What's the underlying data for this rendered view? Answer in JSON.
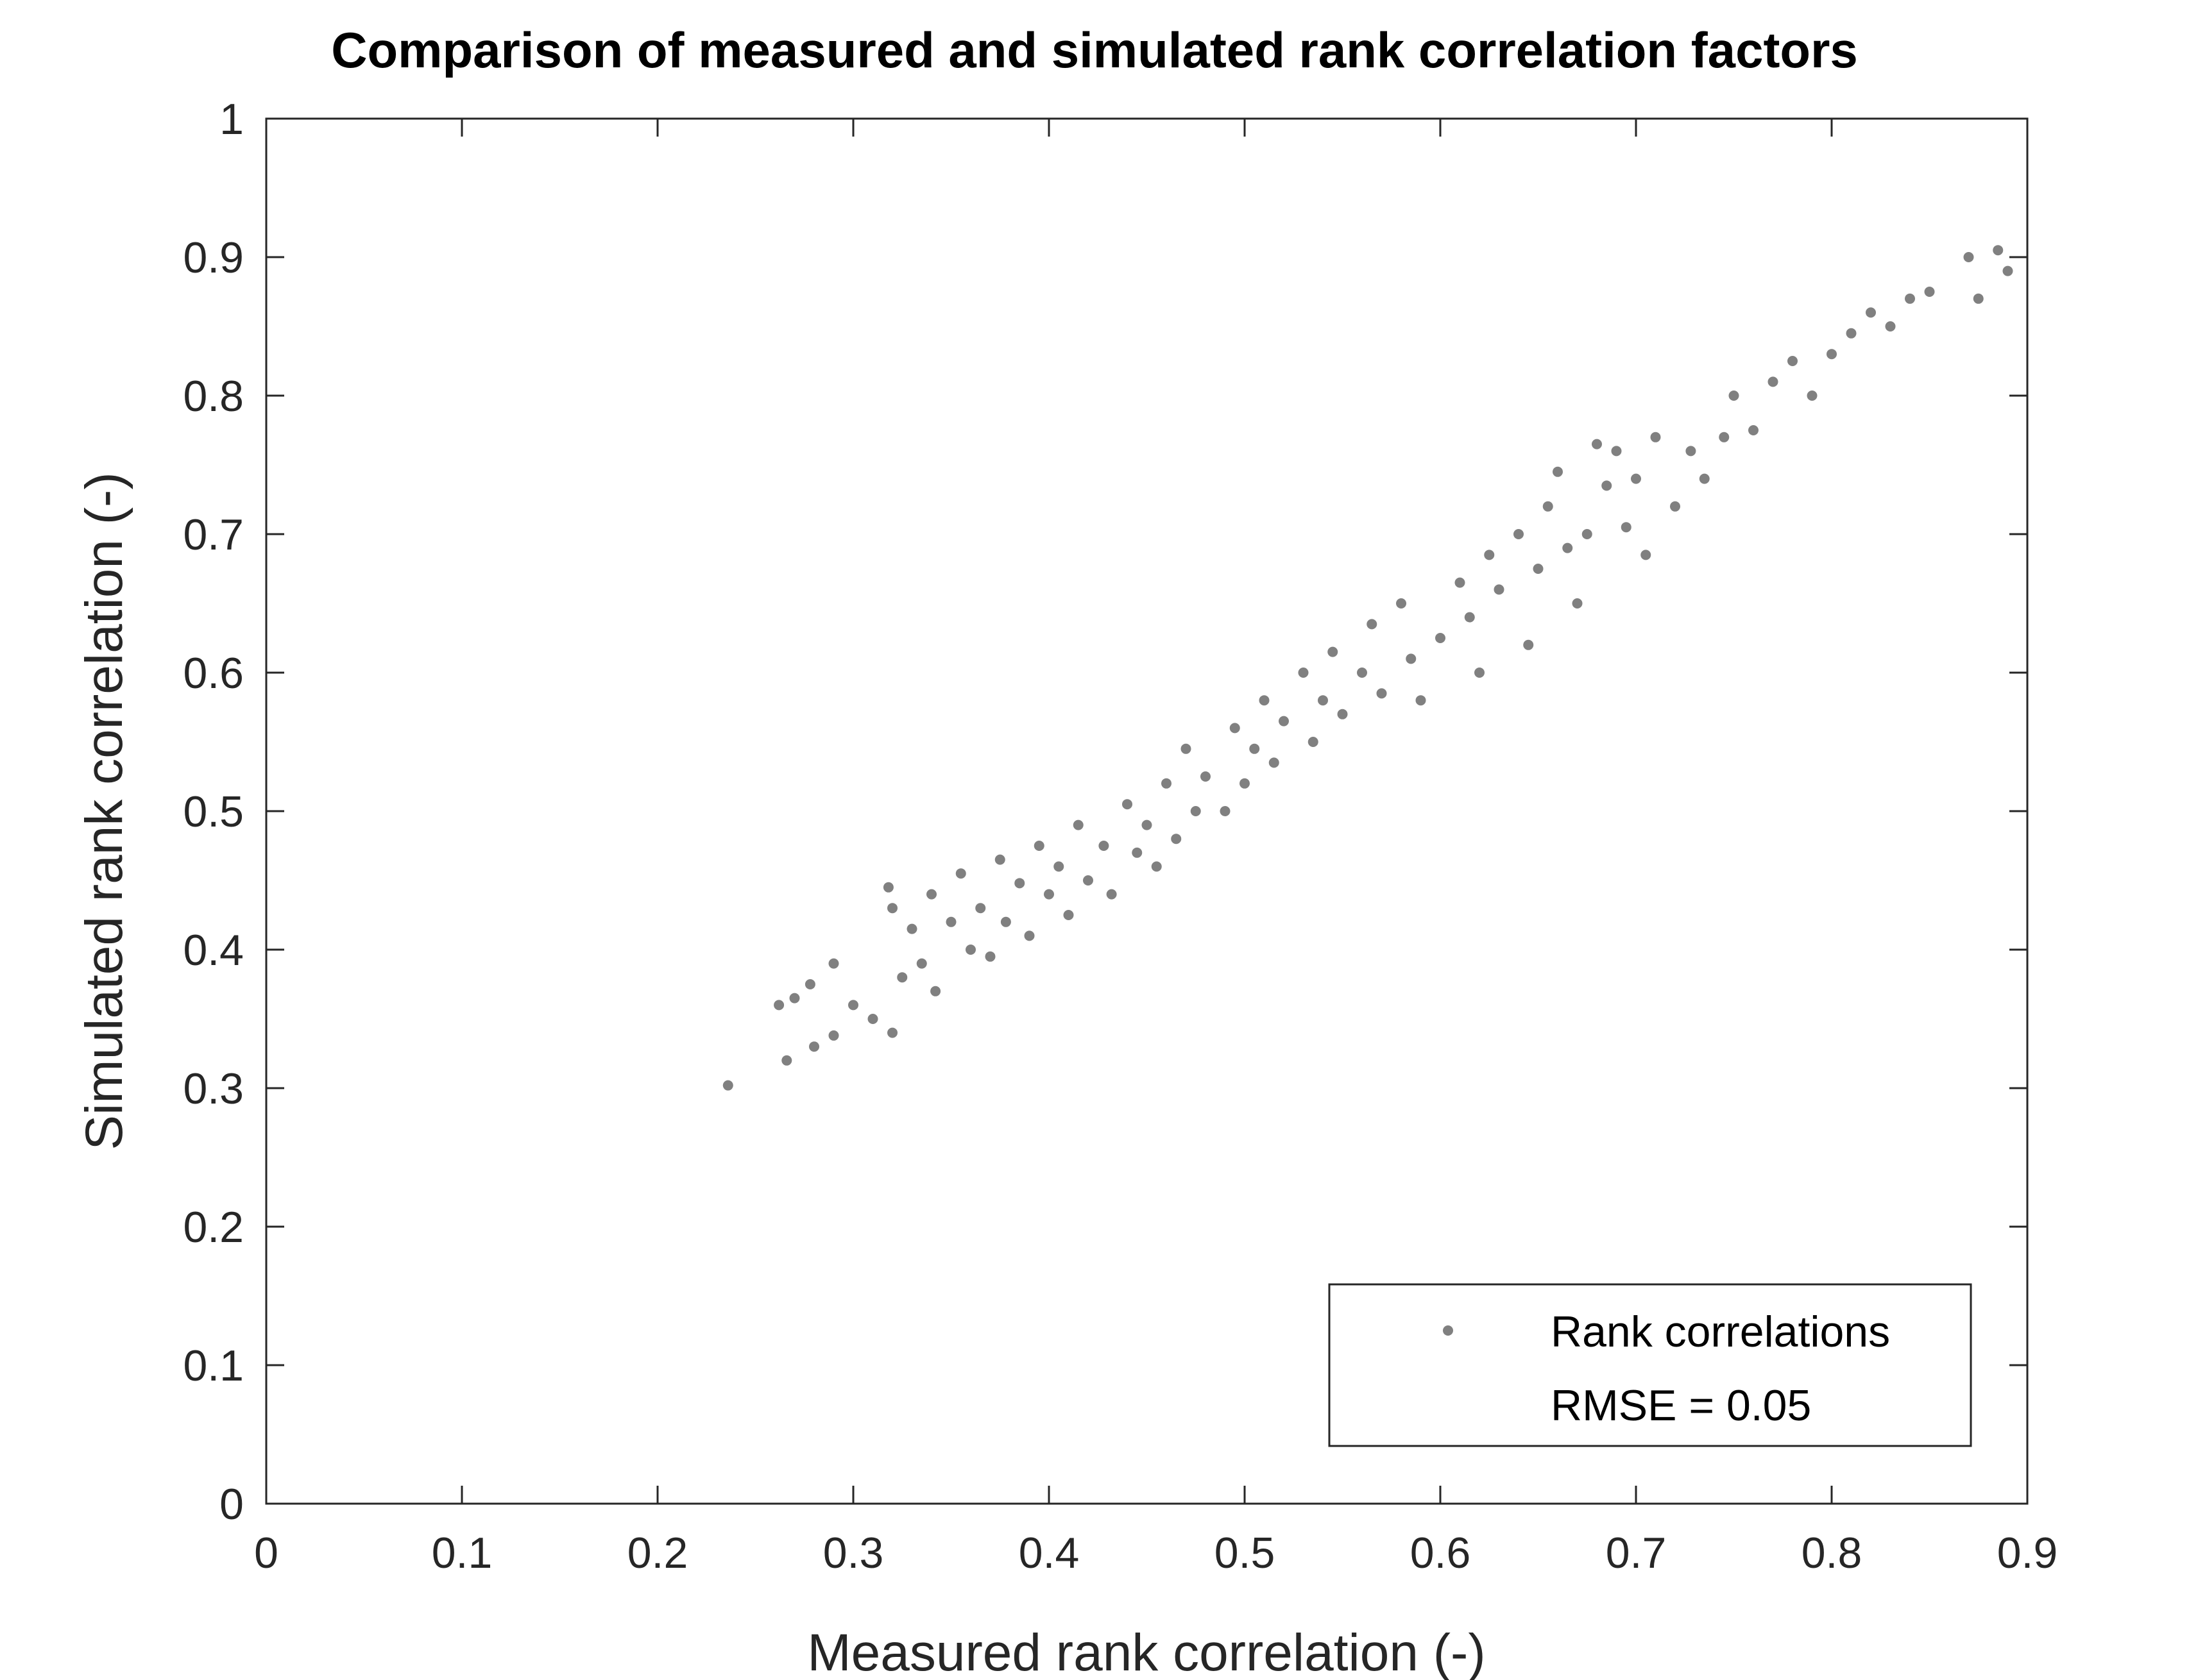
{
  "chart_data": {
    "type": "scatter",
    "title": "Comparison of measured and simulated rank correlation factors",
    "xlabel": "Measured rank correlation (-)",
    "ylabel": "Simulated rank correlation (-)",
    "xlim": [
      0,
      0.9
    ],
    "ylim": [
      0,
      1
    ],
    "xticks": [
      "0",
      "0.1",
      "0.2",
      "0.3",
      "0.4",
      "0.5",
      "0.6",
      "0.7",
      "0.8",
      "0.9"
    ],
    "yticks": [
      "0",
      "0.1",
      "0.2",
      "0.3",
      "0.4",
      "0.5",
      "0.6",
      "0.7",
      "0.8",
      "0.9",
      "1"
    ],
    "grid": false,
    "legend": {
      "location": "bottom-right",
      "series_label": "Rank correlations",
      "note": "RMSE = 0.05"
    },
    "series": [
      {
        "name": "Rank correlations",
        "color": "#808080",
        "points": [
          [
            0.236,
            0.302
          ],
          [
            0.266,
            0.32
          ],
          [
            0.262,
            0.36
          ],
          [
            0.27,
            0.365
          ],
          [
            0.28,
            0.33
          ],
          [
            0.29,
            0.338
          ],
          [
            0.278,
            0.375
          ],
          [
            0.29,
            0.39
          ],
          [
            0.3,
            0.36
          ],
          [
            0.31,
            0.35
          ],
          [
            0.318,
            0.445
          ],
          [
            0.32,
            0.43
          ],
          [
            0.32,
            0.34
          ],
          [
            0.325,
            0.38
          ],
          [
            0.33,
            0.415
          ],
          [
            0.335,
            0.39
          ],
          [
            0.34,
            0.44
          ],
          [
            0.342,
            0.37
          ],
          [
            0.35,
            0.42
          ],
          [
            0.355,
            0.455
          ],
          [
            0.36,
            0.4
          ],
          [
            0.365,
            0.43
          ],
          [
            0.37,
            0.395
          ],
          [
            0.375,
            0.465
          ],
          [
            0.378,
            0.42
          ],
          [
            0.385,
            0.448
          ],
          [
            0.39,
            0.41
          ],
          [
            0.395,
            0.475
          ],
          [
            0.4,
            0.44
          ],
          [
            0.405,
            0.46
          ],
          [
            0.41,
            0.425
          ],
          [
            0.415,
            0.49
          ],
          [
            0.42,
            0.45
          ],
          [
            0.428,
            0.475
          ],
          [
            0.432,
            0.44
          ],
          [
            0.44,
            0.505
          ],
          [
            0.445,
            0.47
          ],
          [
            0.45,
            0.49
          ],
          [
            0.455,
            0.46
          ],
          [
            0.46,
            0.52
          ],
          [
            0.465,
            0.48
          ],
          [
            0.47,
            0.545
          ],
          [
            0.475,
            0.5
          ],
          [
            0.48,
            0.525
          ],
          [
            0.49,
            0.5
          ],
          [
            0.495,
            0.56
          ],
          [
            0.5,
            0.52
          ],
          [
            0.505,
            0.545
          ],
          [
            0.51,
            0.58
          ],
          [
            0.515,
            0.535
          ],
          [
            0.52,
            0.565
          ],
          [
            0.53,
            0.6
          ],
          [
            0.535,
            0.55
          ],
          [
            0.54,
            0.58
          ],
          [
            0.545,
            0.615
          ],
          [
            0.55,
            0.57
          ],
          [
            0.56,
            0.6
          ],
          [
            0.565,
            0.635
          ],
          [
            0.57,
            0.585
          ],
          [
            0.58,
            0.65
          ],
          [
            0.585,
            0.61
          ],
          [
            0.59,
            0.58
          ],
          [
            0.6,
            0.625
          ],
          [
            0.61,
            0.665
          ],
          [
            0.615,
            0.64
          ],
          [
            0.62,
            0.6
          ],
          [
            0.625,
            0.685
          ],
          [
            0.63,
            0.66
          ],
          [
            0.64,
            0.7
          ],
          [
            0.645,
            0.62
          ],
          [
            0.65,
            0.675
          ],
          [
            0.655,
            0.72
          ],
          [
            0.66,
            0.745
          ],
          [
            0.665,
            0.69
          ],
          [
            0.67,
            0.65
          ],
          [
            0.675,
            0.7
          ],
          [
            0.68,
            0.765
          ],
          [
            0.685,
            0.735
          ],
          [
            0.69,
            0.76
          ],
          [
            0.695,
            0.705
          ],
          [
            0.7,
            0.74
          ],
          [
            0.705,
            0.685
          ],
          [
            0.71,
            0.77
          ],
          [
            0.72,
            0.72
          ],
          [
            0.728,
            0.76
          ],
          [
            0.735,
            0.74
          ],
          [
            0.745,
            0.77
          ],
          [
            0.75,
            0.8
          ],
          [
            0.76,
            0.775
          ],
          [
            0.77,
            0.81
          ],
          [
            0.78,
            0.825
          ],
          [
            0.79,
            0.8
          ],
          [
            0.8,
            0.83
          ],
          [
            0.81,
            0.845
          ],
          [
            0.82,
            0.86
          ],
          [
            0.83,
            0.85
          ],
          [
            0.84,
            0.87
          ],
          [
            0.85,
            0.875
          ],
          [
            0.87,
            0.9
          ],
          [
            0.875,
            0.87
          ],
          [
            0.885,
            0.905
          ],
          [
            0.89,
            0.89
          ]
        ]
      }
    ]
  }
}
